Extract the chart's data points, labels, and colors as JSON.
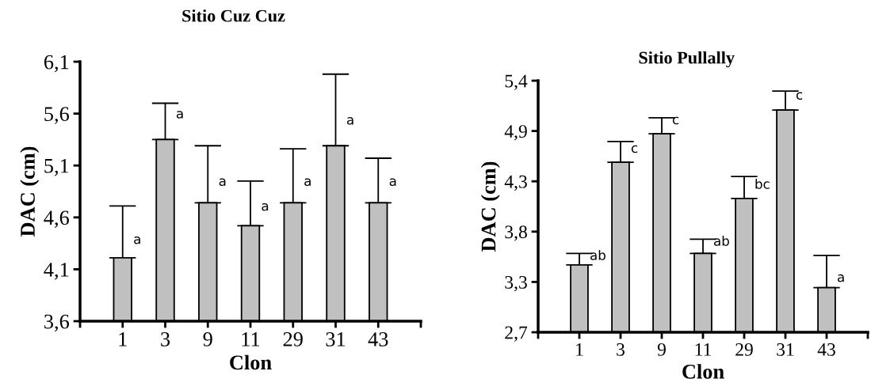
{
  "chart_data": [
    {
      "type": "bar",
      "title": "Sitio Cuz Cuz",
      "xlabel": "Clon",
      "ylabel": "DAC (cm)",
      "categories": [
        "1",
        "3",
        "9",
        "11",
        "29",
        "31",
        "43"
      ],
      "values": [
        4.21,
        5.35,
        4.74,
        4.52,
        4.74,
        5.29,
        4.74
      ],
      "color": "#c0c0c0",
      "errors": [
        [
          4.21,
          4.71
        ],
        [
          5.35,
          5.7
        ],
        [
          4.74,
          5.29
        ],
        [
          4.52,
          4.95
        ],
        [
          4.74,
          5.26
        ],
        [
          5.29,
          5.98
        ],
        [
          4.74,
          5.17
        ]
      ],
      "ylim": [
        3.6,
        6.1
      ],
      "yticks": [
        {
          "value": 3.6,
          "label": "3,6"
        },
        {
          "value": 4.1,
          "label": "4,1"
        },
        {
          "value": 4.6,
          "label": "4,6"
        },
        {
          "value": 5.1,
          "label": "5,1"
        },
        {
          "value": 5.6,
          "label": "5,6"
        },
        {
          "value": 6.1,
          "label": "6,1"
        }
      ],
      "annotations": [
        {
          "text": "a",
          "x": "1",
          "y": 4.38
        },
        {
          "text": "a",
          "x": "3",
          "y": 5.59
        },
        {
          "text": "a",
          "x": "9",
          "y": 4.94
        },
        {
          "text": "a",
          "x": "11",
          "y": 4.7
        },
        {
          "text": "a",
          "x": "29",
          "y": 4.94
        },
        {
          "text": "a",
          "x": "31",
          "y": 5.53
        },
        {
          "text": "a",
          "x": "43",
          "y": 4.94
        }
      ],
      "grid": false,
      "legend": false
    },
    {
      "type": "bar",
      "title": "Sitio Pullally",
      "xlabel": "Clon",
      "ylabel": "DAC (cm)",
      "categories": [
        "1",
        "3",
        "9",
        "11",
        "29",
        "31",
        "43"
      ],
      "values": [
        3.46,
        4.54,
        4.84,
        3.58,
        4.16,
        5.09,
        3.22
      ],
      "color": "#c0c0c0",
      "errors": [
        [
          3.46,
          3.58
        ],
        [
          4.54,
          4.76
        ],
        [
          4.84,
          5.01
        ],
        [
          3.58,
          3.73
        ],
        [
          4.16,
          4.39
        ],
        [
          5.09,
          5.29
        ],
        [
          3.22,
          3.56
        ]
      ],
      "ylim": [
        2.75,
        5.4
      ],
      "yticks": [
        {
          "value": 2.75,
          "label": "2,7"
        },
        {
          "value": 3.28,
          "label": "3,3"
        },
        {
          "value": 3.81,
          "label": "3,8"
        },
        {
          "value": 4.34,
          "label": "4,3"
        },
        {
          "value": 4.87,
          "label": "4,9"
        },
        {
          "value": 5.4,
          "label": "5,4"
        }
      ],
      "annotations": [
        {
          "text": "ab",
          "x": "1",
          "y": 3.55
        },
        {
          "text": "c",
          "x": "3",
          "y": 4.68
        },
        {
          "text": "c",
          "x": "9",
          "y": 4.98
        },
        {
          "text": "ab",
          "x": "11",
          "y": 3.7
        },
        {
          "text": "bc",
          "x": "29",
          "y": 4.3
        },
        {
          "text": "c",
          "x": "31",
          "y": 5.24
        },
        {
          "text": "a",
          "x": "43",
          "y": 3.32
        }
      ],
      "grid": false,
      "legend": false
    }
  ]
}
